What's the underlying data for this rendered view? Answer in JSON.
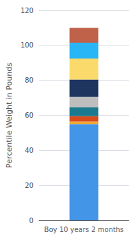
{
  "chart_data": {
    "type": "bar",
    "stacked": true,
    "categories": [
      "Boy 10 years 2 months"
    ],
    "series": [
      {
        "color": "#4395E8",
        "values": [
          55
        ]
      },
      {
        "color": "#F0A830",
        "values": [
          1.5
        ]
      },
      {
        "color": "#D94B1A",
        "values": [
          3
        ]
      },
      {
        "color": "#1B7A90",
        "values": [
          5
        ]
      },
      {
        "color": "#BEBEBE",
        "values": [
          6
        ]
      },
      {
        "color": "#1E3560",
        "values": [
          10
        ]
      },
      {
        "color": "#FADA6A",
        "values": [
          12
        ]
      },
      {
        "color": "#29B6F6",
        "values": [
          9
        ]
      },
      {
        "color": "#C0624A",
        "values": [
          8.5
        ]
      }
    ],
    "ylabel": "Percentile Weight in Pounds",
    "ylim": [
      0,
      120
    ],
    "yticks": [
      0,
      20,
      40,
      60,
      80,
      100,
      120
    ],
    "grid": true
  }
}
